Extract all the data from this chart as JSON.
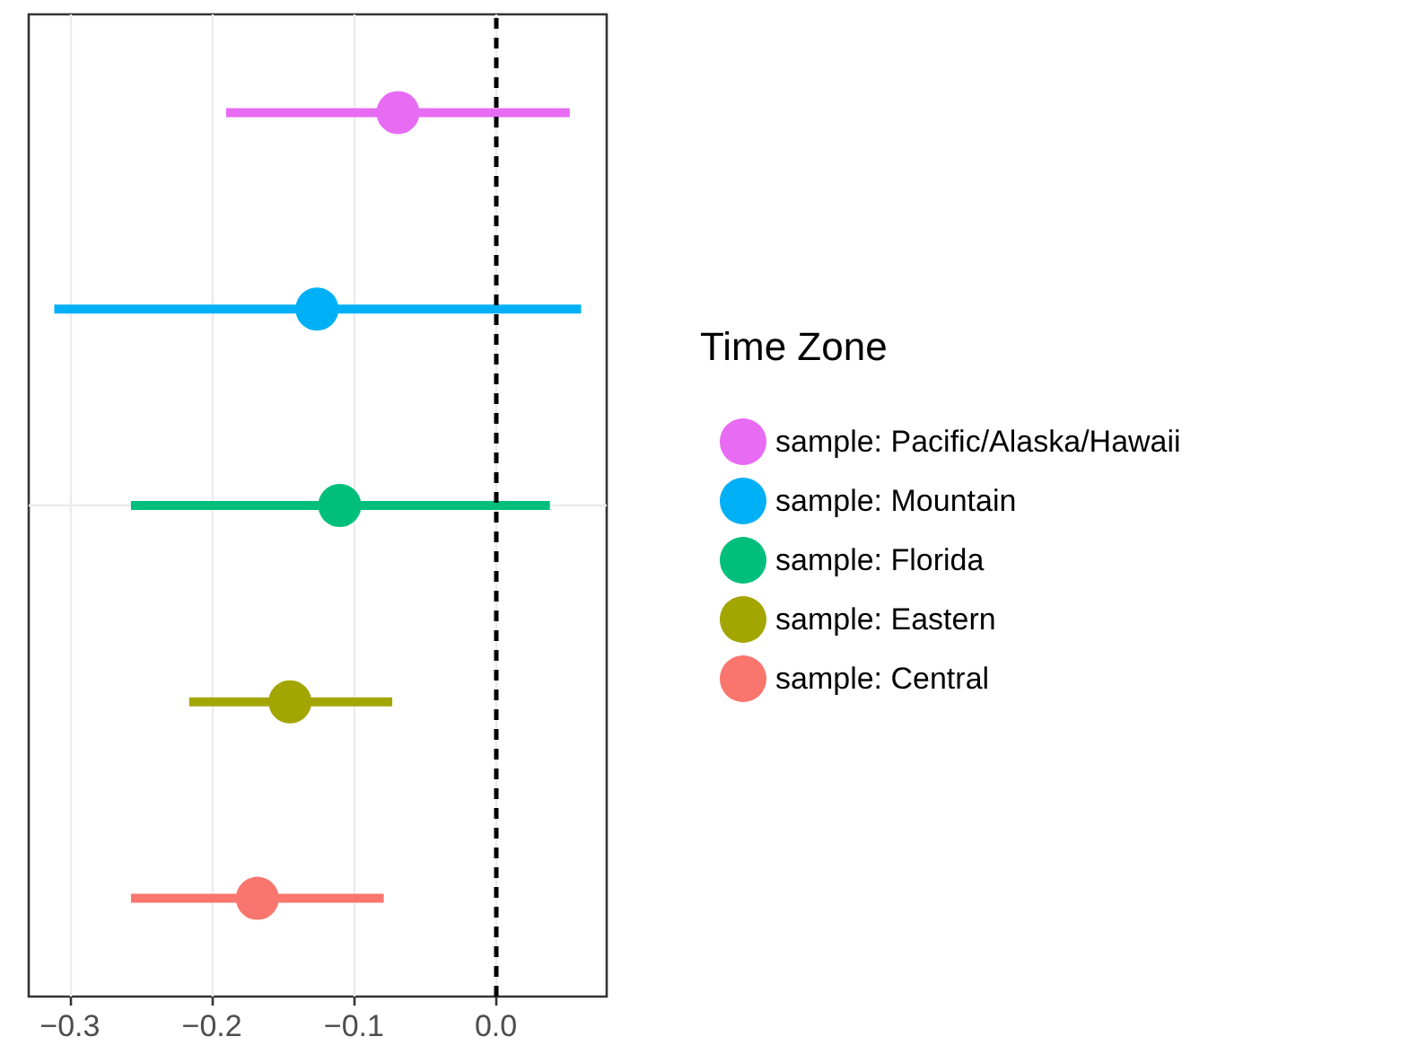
{
  "chart_data": {
    "type": "scatter",
    "orientation": "horizontal",
    "legend_title": "Time Zone",
    "legend": "right",
    "grid": true,
    "marker": "circle",
    "categories": [
      null
    ],
    "xlim": [
      -0.329,
      0.078
    ],
    "xticks": [
      -0.3,
      -0.2,
      -0.1,
      {
        "value": 0,
        "label": "0.0"
      }
    ],
    "ref_lines": [
      {
        "axis": "x",
        "value": 0,
        "color": "#000000",
        "line_style": "dashed"
      }
    ],
    "series": [
      {
        "name": "sample: Pacific/Alaska/Hawaii",
        "color": "#e76bf3",
        "values": [
          -0.069
        ],
        "errors": [
          [
            -0.19,
            0.052
          ]
        ]
      },
      {
        "name": "sample: Mountain",
        "color": "#00b0f6",
        "values": [
          -0.126
        ],
        "errors": [
          [
            -0.311,
            0.06
          ]
        ]
      },
      {
        "name": "sample: Florida",
        "color": "#00bf7d",
        "values": [
          -0.11
        ],
        "errors": [
          [
            -0.257,
            0.038
          ]
        ]
      },
      {
        "name": "sample: Eastern",
        "color": "#a3a500",
        "values": [
          -0.145
        ],
        "errors": [
          [
            -0.216,
            -0.073
          ]
        ]
      },
      {
        "name": "sample: Central",
        "color": "#f8766d",
        "values": [
          -0.168
        ],
        "errors": [
          [
            -0.257,
            -0.079
          ]
        ]
      }
    ]
  }
}
